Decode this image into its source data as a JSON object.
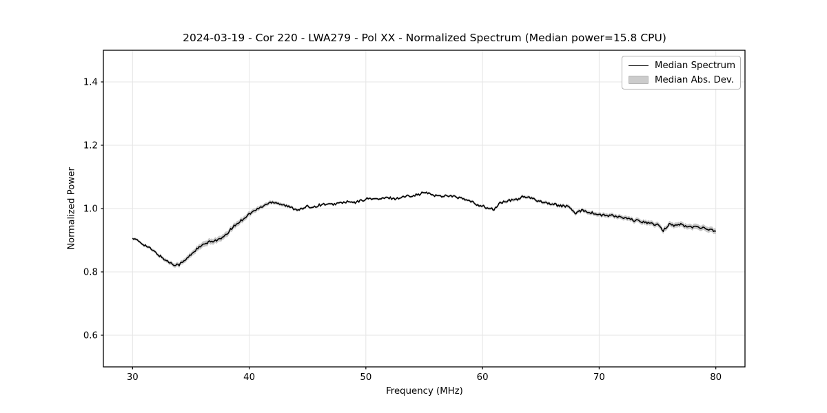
{
  "chart_data": {
    "type": "line",
    "title": "2024-03-19 - Cor 220 - LWA279 - Pol XX - Normalized Spectrum (Median power=15.8 CPU)",
    "xlabel": "Frequency (MHz)",
    "ylabel": "Normalized Power",
    "xlim": [
      27.5,
      82.5
    ],
    "ylim": [
      0.5,
      1.5
    ],
    "grid": true,
    "x_ticks": [
      30,
      40,
      50,
      60,
      70,
      80
    ],
    "y_ticks": [
      0.6,
      0.8,
      1.0,
      1.2,
      1.4
    ],
    "x_tick_labels": [
      "30",
      "40",
      "50",
      "60",
      "70",
      "80"
    ],
    "y_tick_labels": [
      "0.6",
      "0.8",
      "1.0",
      "1.2",
      "1.4"
    ],
    "legend": {
      "position": "upper right",
      "entries": [
        "Median Spectrum",
        "Median Abs. Dev."
      ]
    },
    "series": [
      {
        "name": "Median Spectrum",
        "kind": "line",
        "color": "#000000",
        "x_start": 30.0,
        "x_step": 0.5,
        "values": [
          0.906,
          0.897,
          0.886,
          0.874,
          0.86,
          0.846,
          0.833,
          0.824,
          0.823,
          0.836,
          0.855,
          0.872,
          0.884,
          0.893,
          0.899,
          0.903,
          0.915,
          0.938,
          0.953,
          0.968,
          0.983,
          0.994,
          1.004,
          1.014,
          1.022,
          1.017,
          1.011,
          1.004,
          0.998,
          0.998,
          1.006,
          1.005,
          1.011,
          1.014,
          1.012,
          1.016,
          1.019,
          1.021,
          1.018,
          1.024,
          1.03,
          1.032,
          1.029,
          1.032,
          1.034,
          1.031,
          1.035,
          1.039,
          1.042,
          1.044,
          1.051,
          1.046,
          1.041,
          1.039,
          1.042,
          1.038,
          1.034,
          1.028,
          1.022,
          1.013,
          1.008,
          1.0,
          0.997,
          1.018,
          1.022,
          1.026,
          1.03,
          1.038,
          1.034,
          1.028,
          1.023,
          1.018,
          1.014,
          1.01,
          1.008,
          1.004,
          0.982,
          0.996,
          0.99,
          0.985,
          0.98,
          0.978,
          0.978,
          0.975,
          0.971,
          0.967,
          0.963,
          0.959,
          0.957,
          0.952,
          0.948,
          0.93,
          0.952,
          0.946,
          0.95,
          0.943,
          0.941,
          0.944,
          0.937,
          0.934,
          0.928
        ]
      },
      {
        "name": "Median Abs. Dev.",
        "kind": "band",
        "around": "Median Spectrum",
        "color": "#c9c9c9",
        "half_width_anchors": [
          [
            30,
            0.004
          ],
          [
            32,
            0.005
          ],
          [
            33.5,
            0.0065
          ],
          [
            35,
            0.008
          ],
          [
            36,
            0.009
          ],
          [
            38,
            0.009
          ],
          [
            40,
            0.008
          ],
          [
            41.5,
            0.006
          ],
          [
            43,
            0.005
          ],
          [
            45,
            0.004
          ],
          [
            47,
            0.0035
          ],
          [
            55,
            0.0035
          ],
          [
            58,
            0.004
          ],
          [
            61,
            0.0045
          ],
          [
            63,
            0.005
          ],
          [
            66,
            0.005
          ],
          [
            68,
            0.006
          ],
          [
            70,
            0.0065
          ],
          [
            72,
            0.007
          ],
          [
            74,
            0.0075
          ],
          [
            76,
            0.008
          ],
          [
            78,
            0.0085
          ],
          [
            80,
            0.009
          ]
        ]
      }
    ],
    "style": {
      "grid_color": "#e5e5e5",
      "frame_color": "#000000",
      "tick_color": "#000000",
      "line_width": 1.6,
      "noise_amplitude": 0.004,
      "noise_subdivisions": 5
    }
  }
}
